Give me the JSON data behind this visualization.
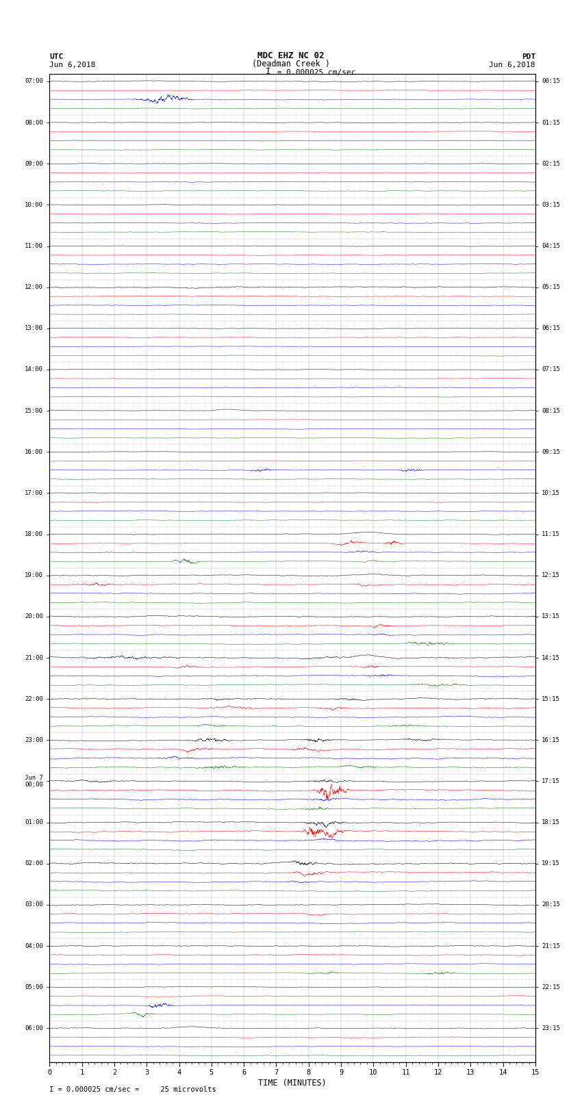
{
  "title_line1": "MDC EHZ NC 02",
  "title_line2": "(Deadman Creek )",
  "scale_label": "= 0.000025 cm/sec",
  "utc_label": "UTC",
  "utc_date": "Jun 6,2018",
  "pdt_label": "PDT",
  "pdt_date": "Jun 6,2018",
  "xlabel": "TIME (MINUTES)",
  "footer": "= 0.000025 cm/sec =     25 microvolts",
  "left_times_utc": [
    "07:00",
    "08:00",
    "09:00",
    "10:00",
    "11:00",
    "12:00",
    "13:00",
    "14:00",
    "15:00",
    "16:00",
    "17:00",
    "18:00",
    "19:00",
    "20:00",
    "21:00",
    "22:00",
    "23:00",
    "Jun 7\n00:00",
    "01:00",
    "02:00",
    "03:00",
    "04:00",
    "05:00",
    "06:00"
  ],
  "right_times_pdt": [
    "00:15",
    "01:15",
    "02:15",
    "03:15",
    "04:15",
    "05:15",
    "06:15",
    "07:15",
    "08:15",
    "09:15",
    "10:15",
    "11:15",
    "12:15",
    "13:15",
    "14:15",
    "15:15",
    "16:15",
    "17:15",
    "18:15",
    "19:15",
    "20:15",
    "21:15",
    "22:15",
    "23:15"
  ],
  "n_rows": 24,
  "traces_per_row": 4,
  "colors": [
    "black",
    "red",
    "blue",
    "green"
  ],
  "bg_color": "white",
  "xmin": 0,
  "xmax": 15
}
